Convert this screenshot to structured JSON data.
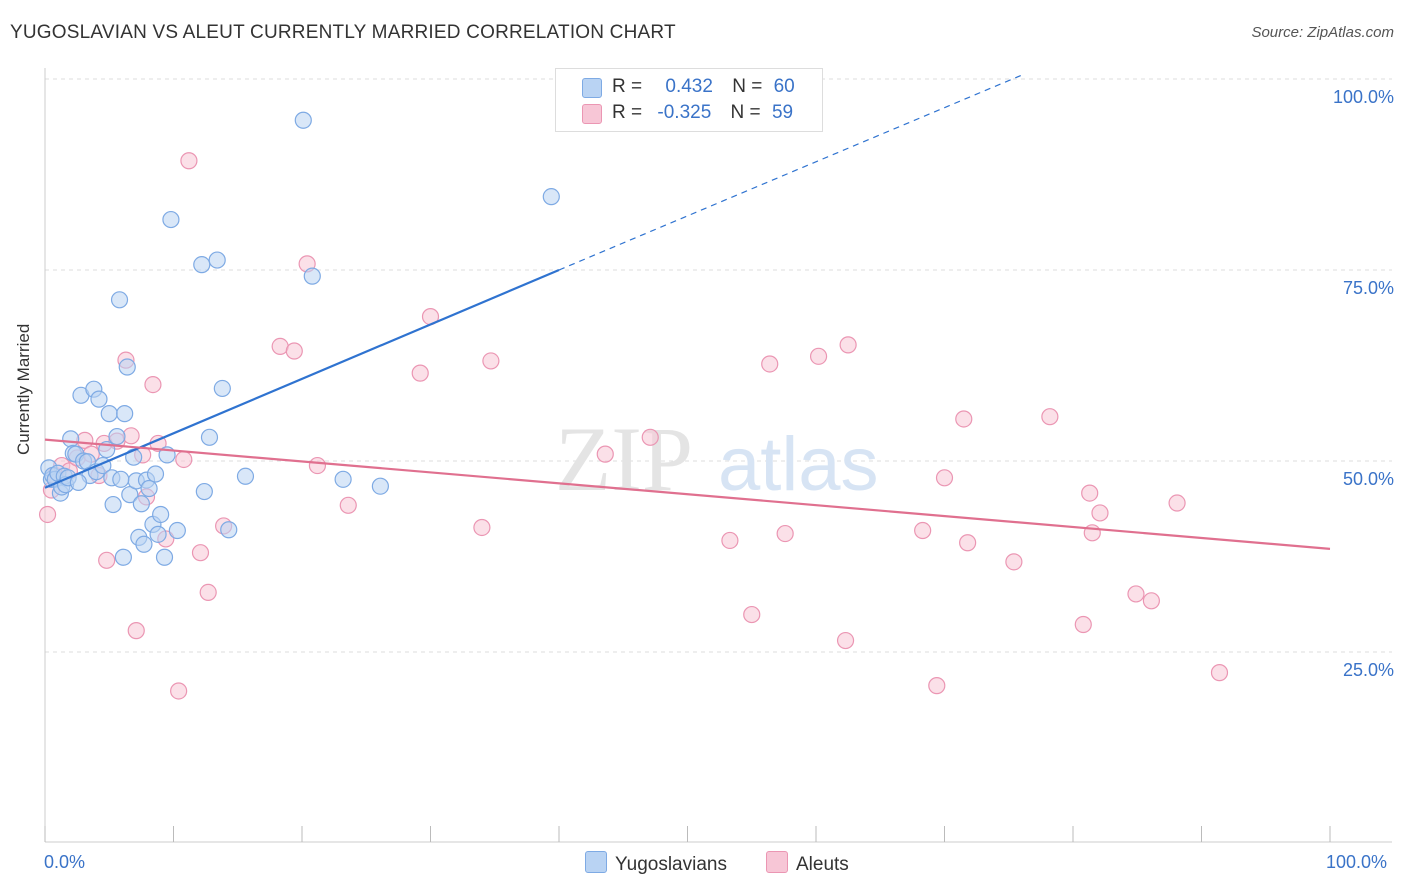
{
  "header": {
    "title": "YUGOSLAVIAN VS ALEUT CURRENTLY MARRIED CORRELATION CHART",
    "source": "Source: ZipAtlas.com"
  },
  "colors": {
    "blue_fill": "#b9d3f3",
    "blue_stroke": "#7eaae4",
    "blue_line": "#2f73d0",
    "pink_fill": "#f7c6d6",
    "pink_stroke": "#eb96b3",
    "pink_line": "#e0708f",
    "axis_label": "#3a73c8",
    "grid": "#dddddd"
  },
  "legend_top": {
    "rows": [
      {
        "r_label": "R =",
        "r_value": "0.432",
        "n_label": "N =",
        "n_value": "60"
      },
      {
        "r_label": "R =",
        "r_value": "-0.325",
        "n_label": "N =",
        "n_value": "59"
      }
    ]
  },
  "legend_bottom": {
    "series_a": "Yugoslavians",
    "series_b": "Aleuts"
  },
  "watermark": {
    "zip": "ZIP",
    "atlas": "atlas"
  },
  "chart_data": {
    "type": "scatter",
    "xlabel": "",
    "ylabel": "Currently Married",
    "xlim": [
      0,
      100
    ],
    "ylim": [
      0,
      104
    ],
    "x_tick_labels": [
      "0.0%",
      "100.0%"
    ],
    "y_ticks": [
      {
        "value": 25,
        "label": "25.0%"
      },
      {
        "value": 50,
        "label": "50.0%"
      },
      {
        "value": 75,
        "label": "75.0%"
      },
      {
        "value": 100,
        "label": "100.0%"
      }
    ],
    "grid": true,
    "series": [
      {
        "name": "Yugoslavians",
        "color": "#7eaae4",
        "trend": {
          "x0": 0,
          "y0": 46.5,
          "x1": 40,
          "y1": 75,
          "dash_to_x": 76,
          "dash_to_y": 100.5
        },
        "points": [
          [
            0.3,
            49.1
          ],
          [
            0.5,
            47.6
          ],
          [
            0.6,
            48.1
          ],
          [
            0.8,
            47.6
          ],
          [
            1.0,
            48.4
          ],
          [
            1.2,
            45.8
          ],
          [
            1.3,
            46.6
          ],
          [
            1.5,
            48.0
          ],
          [
            1.6,
            46.9
          ],
          [
            1.8,
            47.8
          ],
          [
            2.0,
            52.9
          ],
          [
            2.2,
            51.0
          ],
          [
            2.4,
            50.9
          ],
          [
            2.8,
            58.6
          ],
          [
            3.0,
            50.0
          ],
          [
            3.3,
            49.9
          ],
          [
            3.5,
            48.1
          ],
          [
            3.8,
            59.4
          ],
          [
            4.0,
            48.6
          ],
          [
            4.2,
            58.1
          ],
          [
            4.5,
            49.4
          ],
          [
            4.8,
            51.5
          ],
          [
            5.0,
            56.2
          ],
          [
            5.2,
            47.8
          ],
          [
            5.3,
            44.3
          ],
          [
            5.6,
            53.2
          ],
          [
            5.8,
            71.1
          ],
          [
            6.1,
            37.4
          ],
          [
            6.2,
            56.2
          ],
          [
            6.4,
            62.3
          ],
          [
            6.6,
            45.6
          ],
          [
            6.9,
            50.5
          ],
          [
            7.1,
            47.4
          ],
          [
            7.3,
            40.0
          ],
          [
            7.5,
            44.4
          ],
          [
            7.7,
            39.1
          ],
          [
            7.9,
            47.5
          ],
          [
            8.1,
            46.4
          ],
          [
            8.4,
            41.7
          ],
          [
            8.6,
            48.3
          ],
          [
            8.8,
            40.4
          ],
          [
            9.0,
            43.0
          ],
          [
            9.3,
            37.4
          ],
          [
            9.5,
            50.8
          ],
          [
            9.8,
            81.6
          ],
          [
            10.3,
            40.9
          ],
          [
            12.2,
            75.7
          ],
          [
            12.4,
            46.0
          ],
          [
            12.8,
            53.1
          ],
          [
            13.4,
            76.3
          ],
          [
            13.8,
            59.5
          ],
          [
            14.3,
            41.0
          ],
          [
            15.6,
            48.0
          ],
          [
            20.1,
            94.6
          ],
          [
            20.8,
            74.2
          ],
          [
            23.2,
            47.6
          ],
          [
            26.1,
            46.7
          ],
          [
            39.4,
            84.6
          ],
          [
            5.9,
            47.6
          ],
          [
            2.6,
            47.2
          ]
        ]
      },
      {
        "name": "Aleuts",
        "color": "#eb96b3",
        "trend": {
          "x0": 0,
          "y0": 52.8,
          "x1": 100,
          "y1": 38.5
        },
        "points": [
          [
            0.2,
            43.0
          ],
          [
            0.5,
            46.2
          ],
          [
            0.8,
            48.1
          ],
          [
            1.3,
            49.4
          ],
          [
            1.9,
            48.7
          ],
          [
            2.5,
            50.4
          ],
          [
            3.1,
            52.7
          ],
          [
            3.6,
            50.9
          ],
          [
            4.2,
            48.1
          ],
          [
            4.6,
            52.3
          ],
          [
            4.8,
            37.0
          ],
          [
            5.6,
            52.6
          ],
          [
            6.3,
            63.2
          ],
          [
            6.7,
            53.3
          ],
          [
            7.1,
            27.8
          ],
          [
            7.6,
            50.8
          ],
          [
            7.9,
            45.3
          ],
          [
            8.4,
            60.0
          ],
          [
            8.8,
            52.3
          ],
          [
            9.4,
            39.8
          ],
          [
            10.4,
            19.9
          ],
          [
            10.8,
            50.2
          ],
          [
            11.2,
            89.3
          ],
          [
            12.1,
            38.0
          ],
          [
            12.7,
            32.8
          ],
          [
            13.9,
            41.5
          ],
          [
            18.3,
            65.0
          ],
          [
            19.4,
            64.4
          ],
          [
            20.4,
            75.8
          ],
          [
            21.2,
            49.4
          ],
          [
            23.6,
            44.2
          ],
          [
            29.2,
            61.5
          ],
          [
            30.0,
            68.9
          ],
          [
            34.0,
            41.3
          ],
          [
            34.7,
            63.1
          ],
          [
            43.6,
            50.9
          ],
          [
            47.1,
            53.1
          ],
          [
            53.3,
            39.6
          ],
          [
            55.0,
            29.9
          ],
          [
            56.4,
            62.7
          ],
          [
            57.6,
            40.5
          ],
          [
            60.2,
            63.7
          ],
          [
            62.3,
            26.5
          ],
          [
            62.5,
            65.2
          ],
          [
            68.3,
            40.9
          ],
          [
            69.4,
            20.6
          ],
          [
            70.0,
            47.8
          ],
          [
            71.5,
            55.5
          ],
          [
            71.8,
            39.3
          ],
          [
            75.4,
            36.8
          ],
          [
            78.2,
            55.8
          ],
          [
            80.8,
            28.6
          ],
          [
            81.3,
            45.8
          ],
          [
            81.5,
            40.6
          ],
          [
            82.1,
            43.2
          ],
          [
            84.9,
            32.6
          ],
          [
            86.1,
            31.7
          ],
          [
            88.1,
            44.5
          ],
          [
            91.4,
            22.3
          ]
        ]
      }
    ]
  }
}
